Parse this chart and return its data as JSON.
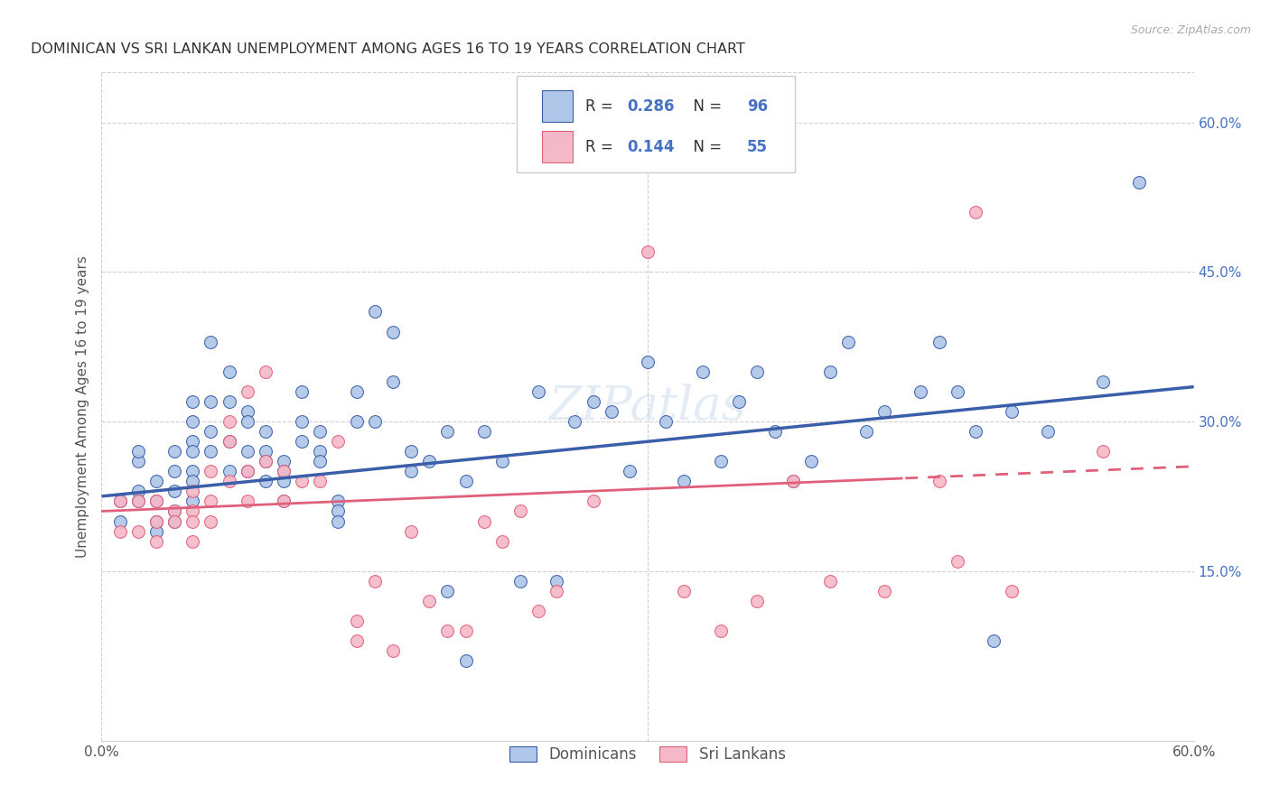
{
  "title": "DOMINICAN VS SRI LANKAN UNEMPLOYMENT AMONG AGES 16 TO 19 YEARS CORRELATION CHART",
  "source": "Source: ZipAtlas.com",
  "ylabel": "Unemployment Among Ages 16 to 19 years",
  "xlim": [
    0.0,
    0.6
  ],
  "ylim": [
    -0.02,
    0.65
  ],
  "xticklabels_shown": [
    "0.0%",
    "60.0%"
  ],
  "xticklabels_pos": [
    0.0,
    0.6
  ],
  "yticks_right": [
    0.15,
    0.3,
    0.45,
    0.6
  ],
  "ytick_right_labels": [
    "15.0%",
    "30.0%",
    "45.0%",
    "60.0%"
  ],
  "dominican_R": 0.286,
  "dominican_N": 96,
  "srilankan_R": 0.144,
  "srilankan_N": 55,
  "dominican_color": "#aec6e8",
  "srilankan_color": "#f4b8c8",
  "dominican_line_color": "#3a5fa8",
  "srilankan_line_color": "#e0607a",
  "legend_text_color": "#4472c4",
  "watermark": "ZIPatlas",
  "grid_color": "#d0d0d0",
  "dominican_x": [
    0.01,
    0.01,
    0.02,
    0.02,
    0.02,
    0.02,
    0.03,
    0.03,
    0.03,
    0.03,
    0.04,
    0.04,
    0.04,
    0.04,
    0.04,
    0.05,
    0.05,
    0.05,
    0.05,
    0.05,
    0.05,
    0.05,
    0.06,
    0.06,
    0.06,
    0.06,
    0.07,
    0.07,
    0.07,
    0.07,
    0.08,
    0.08,
    0.08,
    0.08,
    0.09,
    0.09,
    0.09,
    0.09,
    0.1,
    0.1,
    0.1,
    0.1,
    0.11,
    0.11,
    0.11,
    0.12,
    0.12,
    0.12,
    0.13,
    0.13,
    0.13,
    0.14,
    0.14,
    0.15,
    0.15,
    0.16,
    0.16,
    0.17,
    0.17,
    0.18,
    0.19,
    0.19,
    0.2,
    0.2,
    0.21,
    0.22,
    0.23,
    0.24,
    0.25,
    0.26,
    0.27,
    0.28,
    0.29,
    0.3,
    0.31,
    0.32,
    0.33,
    0.34,
    0.35,
    0.36,
    0.37,
    0.38,
    0.39,
    0.4,
    0.41,
    0.42,
    0.43,
    0.45,
    0.46,
    0.47,
    0.48,
    0.49,
    0.5,
    0.52,
    0.55,
    0.57
  ],
  "dominican_y": [
    0.22,
    0.2,
    0.23,
    0.26,
    0.27,
    0.22,
    0.24,
    0.22,
    0.2,
    0.19,
    0.27,
    0.25,
    0.23,
    0.21,
    0.2,
    0.28,
    0.27,
    0.32,
    0.3,
    0.25,
    0.24,
    0.22,
    0.38,
    0.32,
    0.29,
    0.27,
    0.35,
    0.32,
    0.28,
    0.25,
    0.31,
    0.3,
    0.27,
    0.25,
    0.29,
    0.27,
    0.26,
    0.24,
    0.26,
    0.25,
    0.24,
    0.22,
    0.33,
    0.3,
    0.28,
    0.29,
    0.27,
    0.26,
    0.22,
    0.21,
    0.2,
    0.33,
    0.3,
    0.41,
    0.3,
    0.39,
    0.34,
    0.27,
    0.25,
    0.26,
    0.13,
    0.29,
    0.24,
    0.06,
    0.29,
    0.26,
    0.14,
    0.33,
    0.14,
    0.3,
    0.32,
    0.31,
    0.25,
    0.36,
    0.3,
    0.24,
    0.35,
    0.26,
    0.32,
    0.35,
    0.29,
    0.24,
    0.26,
    0.35,
    0.38,
    0.29,
    0.31,
    0.33,
    0.38,
    0.33,
    0.29,
    0.08,
    0.31,
    0.29,
    0.34,
    0.54
  ],
  "srilankan_x": [
    0.01,
    0.01,
    0.02,
    0.02,
    0.03,
    0.03,
    0.03,
    0.04,
    0.04,
    0.05,
    0.05,
    0.05,
    0.05,
    0.06,
    0.06,
    0.06,
    0.07,
    0.07,
    0.07,
    0.08,
    0.08,
    0.08,
    0.09,
    0.09,
    0.1,
    0.1,
    0.11,
    0.12,
    0.13,
    0.14,
    0.14,
    0.15,
    0.16,
    0.17,
    0.18,
    0.19,
    0.2,
    0.21,
    0.22,
    0.23,
    0.24,
    0.25,
    0.27,
    0.3,
    0.32,
    0.34,
    0.36,
    0.38,
    0.4,
    0.43,
    0.46,
    0.47,
    0.48,
    0.5,
    0.55
  ],
  "srilankan_y": [
    0.22,
    0.19,
    0.22,
    0.19,
    0.22,
    0.2,
    0.18,
    0.21,
    0.2,
    0.23,
    0.21,
    0.2,
    0.18,
    0.25,
    0.22,
    0.2,
    0.3,
    0.28,
    0.24,
    0.33,
    0.25,
    0.22,
    0.35,
    0.26,
    0.25,
    0.22,
    0.24,
    0.24,
    0.28,
    0.1,
    0.08,
    0.14,
    0.07,
    0.19,
    0.12,
    0.09,
    0.09,
    0.2,
    0.18,
    0.21,
    0.11,
    0.13,
    0.22,
    0.47,
    0.13,
    0.09,
    0.12,
    0.24,
    0.14,
    0.13,
    0.24,
    0.16,
    0.51,
    0.13,
    0.27
  ]
}
